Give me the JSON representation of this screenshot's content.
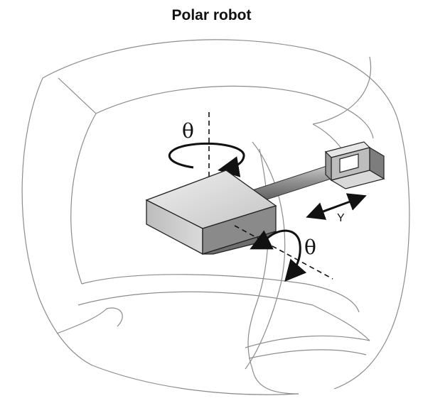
{
  "diagram": {
    "title": "Polar robot",
    "labels": {
      "theta_top": "θ",
      "theta_right": "θ",
      "y_axis": "Y"
    },
    "colors": {
      "envelope_stroke": "#8c8c8c",
      "arrow": "#111111",
      "body_top": "#d6d6d6",
      "body_front": "#b3b3b3",
      "body_side": "#8a8a8a",
      "arm": "#9a9a9a",
      "gripper": "#c8c8c8"
    }
  }
}
